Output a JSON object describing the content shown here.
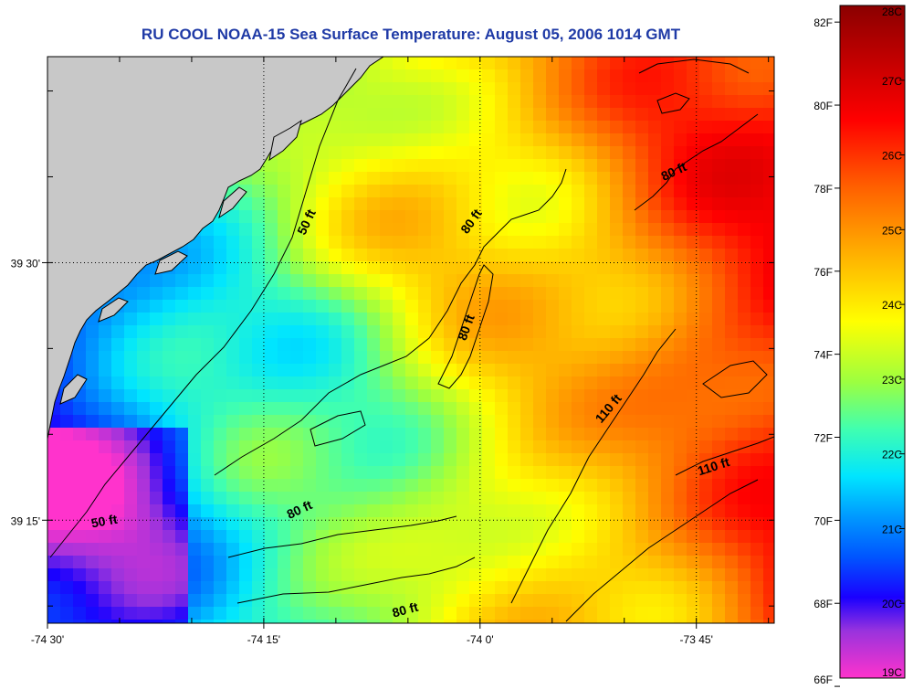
{
  "title": "RU COOL  NOAA-15  Sea Surface Temperature:  August 05, 2006 1014 GMT",
  "map": {
    "lon_range": [
      -74.5,
      -73.66
    ],
    "lat_range": [
      39.15,
      39.7
    ],
    "x_ticks": [
      {
        "value": -74.5,
        "label": "-74 30'"
      },
      {
        "value": -74.25,
        "label": "-74 15'"
      },
      {
        "value": -74.0,
        "label": "-74 0'"
      },
      {
        "value": -73.75,
        "label": "-73 45'"
      }
    ],
    "y_ticks": [
      {
        "value": 39.5,
        "label": "39 30'"
      },
      {
        "value": 39.25,
        "label": "39 15'"
      }
    ],
    "grid": true,
    "land_color": "#c8c8c8",
    "contour_labels": [
      {
        "text": "50 ft",
        "depth_ft": 50
      },
      {
        "text": "50 ft",
        "depth_ft": 50
      },
      {
        "text": "80 ft",
        "depth_ft": 80
      },
      {
        "text": "80 ft",
        "depth_ft": 80
      },
      {
        "text": "80 ft",
        "depth_ft": 80
      },
      {
        "text": "80 ft",
        "depth_ft": 80
      },
      {
        "text": "80 ft",
        "depth_ft": 80
      },
      {
        "text": "110 ft",
        "depth_ft": 110
      },
      {
        "text": "110 ft",
        "depth_ft": 110
      }
    ]
  },
  "colorbar": {
    "min_c": 19,
    "max_c": 28,
    "celsius_ticks": [
      "28C",
      "27C",
      "26C",
      "25C",
      "24C",
      "23C",
      "22C",
      "21C",
      "20C",
      "19C"
    ],
    "fahrenheit_ticks": [
      "82F",
      "80F",
      "78F",
      "76F",
      "74F",
      "72F",
      "70F",
      "68F",
      "66F"
    ],
    "stops": [
      "#ff33cc",
      "#8a2be2",
      "#0000ff",
      "#0090ff",
      "#00ffff",
      "#90ff50",
      "#ffff00",
      "#ff9900",
      "#ff0000",
      "#8b0000"
    ]
  }
}
